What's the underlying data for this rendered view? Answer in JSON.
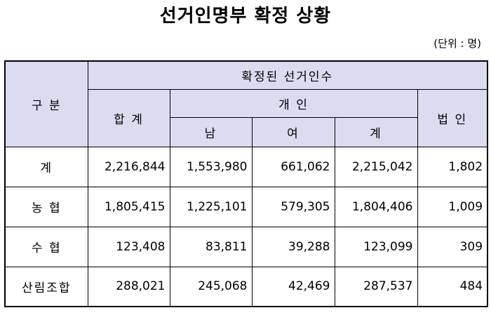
{
  "title": "선거인명부 확정 상황",
  "unit": "(단위 : 명)",
  "header": {
    "category": "구 분",
    "confirmed": "확정된 선거인수",
    "total": "합 계",
    "individual": "개 인",
    "corporate": "법 인",
    "male": "남",
    "female": "여",
    "subtotal": "계"
  },
  "rows": [
    {
      "label": "계",
      "total": "2,216,844",
      "male": "1,553,980",
      "female": "661,062",
      "subtotal": "2,215,042",
      "corporate": "1,802"
    },
    {
      "label": "농 협",
      "total": "1,805,415",
      "male": "1,225,101",
      "female": "579,305",
      "subtotal": "1,804,406",
      "corporate": "1,009"
    },
    {
      "label": "수 협",
      "total": "123,408",
      "male": "83,811",
      "female": "39,288",
      "subtotal": "123,099",
      "corporate": "309"
    },
    {
      "label": "산림조합",
      "total": "288,021",
      "male": "245,068",
      "female": "42,469",
      "subtotal": "287,537",
      "corporate": "484"
    }
  ]
}
